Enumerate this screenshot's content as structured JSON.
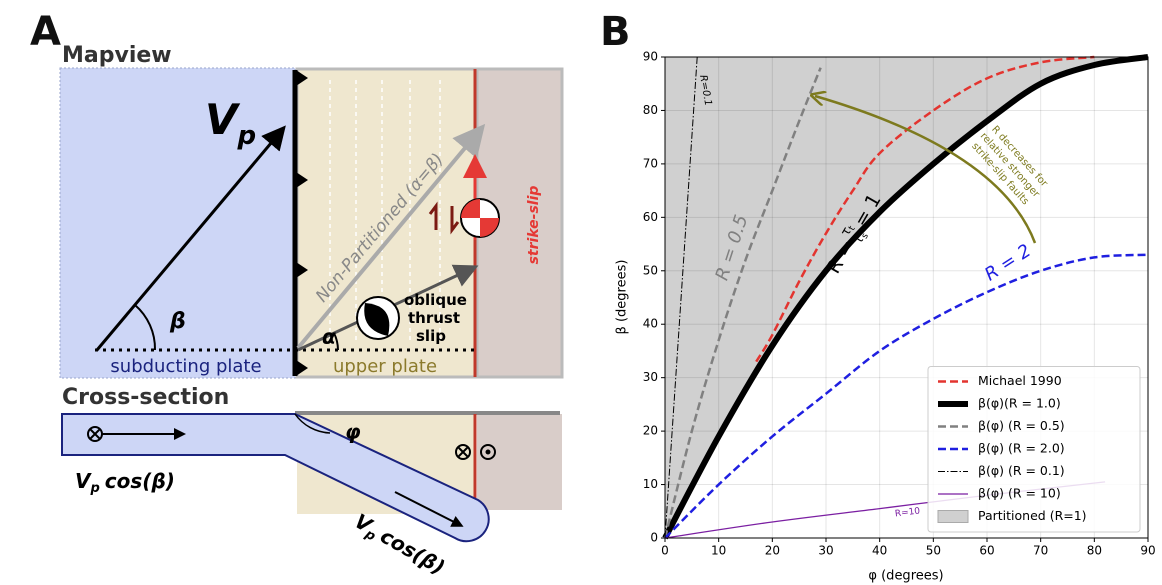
{
  "diagram": {
    "panel_label": "A",
    "mapview": "Mapview",
    "vp": {
      "main": "V",
      "sub": "p"
    },
    "beta": "β",
    "subducting_plate": "subducting plate",
    "upper_plate": "upper plate",
    "non_partitioned": "Non-Partitioned (α=β)",
    "alpha": "α",
    "oblique_slip": [
      "oblique",
      "thrust",
      "slip"
    ],
    "strike_slip": "strike-slip",
    "cross_section": "Cross-section",
    "phi": "φ",
    "vp_cos_beta": [
      {
        "main": "V",
        "sub": "p",
        "rest": "cos(β)"
      },
      {
        "main": "V",
        "sub": "p",
        "rest": "cos(β)"
      }
    ]
  },
  "chart_data": {
    "type": "line",
    "panel_label": "B",
    "xlabel": "φ (degrees)",
    "ylabel": "β (degrees)",
    "xlim": [
      0,
      90
    ],
    "ylim": [
      0,
      90
    ],
    "xticks": [
      0,
      10,
      20,
      30,
      40,
      50,
      60,
      70,
      80,
      90
    ],
    "yticks": [
      0,
      10,
      20,
      30,
      40,
      50,
      60,
      70,
      80,
      90
    ],
    "grid": true,
    "legend": "lower right",
    "series": [
      {
        "name": "Michael 1990",
        "color": "#e3342f",
        "style": "dashed",
        "linewidth": 2.5,
        "x": [
          17,
          20,
          25,
          30,
          35,
          40,
          50,
          60,
          70,
          80
        ],
        "values": [
          33,
          38,
          48,
          57,
          65,
          72,
          80,
          86,
          89,
          90
        ]
      },
      {
        "name": "β(φ)(R = 1.0)",
        "color": "#000000",
        "style": "solid",
        "linewidth": 6,
        "x": [
          0,
          10,
          20,
          30,
          40,
          50,
          60,
          70,
          80,
          90
        ],
        "values": [
          0,
          19,
          36,
          50,
          61,
          70,
          78,
          85,
          88.5,
          90
        ]
      },
      {
        "name": "β(φ) (R = 0.5)",
        "color": "#808080",
        "style": "dashed",
        "linewidth": 2.5,
        "x": [
          0,
          5,
          10,
          15,
          20,
          25,
          29
        ],
        "values": [
          0,
          20,
          37,
          52,
          65,
          78,
          88
        ]
      },
      {
        "name": "β(φ) (R = 2.0)",
        "color": "#1f1fe0",
        "style": "dashed",
        "linewidth": 2.5,
        "x": [
          0,
          10,
          20,
          30,
          40,
          50,
          60,
          70,
          80,
          90
        ],
        "values": [
          0,
          10,
          19,
          27,
          35,
          41,
          46,
          50,
          52.5,
          53
        ]
      },
      {
        "name": "β(φ) (R = 0.1)",
        "color": "#000000",
        "style": "dashdot",
        "linewidth": 1,
        "x": [
          0,
          2,
          4,
          6
        ],
        "values": [
          0,
          30,
          60,
          90
        ]
      },
      {
        "name": "β(φ) (R = 10)",
        "color": "#7b1fa2",
        "style": "solid",
        "linewidth": 1.3,
        "x": [
          0,
          20,
          40,
          60,
          82
        ],
        "values": [
          0,
          3,
          5.5,
          8,
          10.5
        ]
      }
    ],
    "fill": {
      "name": "Partitioned (R=1)",
      "color": "#d0d0d0"
    },
    "annotations": {
      "r01": "R=0.1",
      "r05": "R = 0.5",
      "r2": "R = 2",
      "r10": "R=10",
      "r1": {
        "lhs": "R =",
        "num": "τ",
        "num_sub": "t",
        "den": "τ",
        "den_sub": "s",
        "rhs": "= 1"
      },
      "r_note": [
        "R decreases for",
        "relative stronger",
        "strike-slip faults"
      ]
    }
  }
}
